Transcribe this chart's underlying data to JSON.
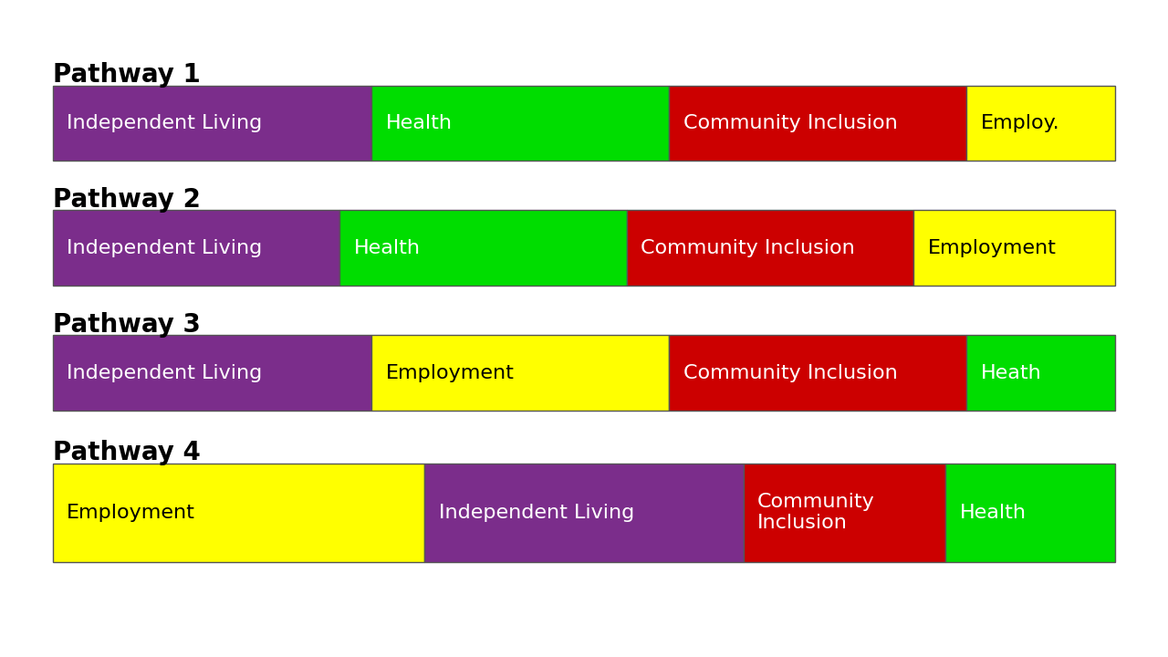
{
  "pathways": [
    {
      "title": "Pathway 1",
      "segments": [
        {
          "label": "Independent Living",
          "value": 30,
          "color": "#7B2D8B"
        },
        {
          "label": "Health",
          "value": 28,
          "color": "#00DD00"
        },
        {
          "label": "Community Inclusion",
          "value": 28,
          "color": "#CC0000"
        },
        {
          "label": "Employ.",
          "value": 14,
          "color": "#FFFF00"
        }
      ]
    },
    {
      "title": "Pathway 2",
      "segments": [
        {
          "label": "Independent Living",
          "value": 27,
          "color": "#7B2D8B"
        },
        {
          "label": "Health",
          "value": 27,
          "color": "#00DD00"
        },
        {
          "label": "Community Inclusion",
          "value": 27,
          "color": "#CC0000"
        },
        {
          "label": "Employment",
          "value": 19,
          "color": "#FFFF00"
        }
      ]
    },
    {
      "title": "Pathway 3",
      "segments": [
        {
          "label": "Independent Living",
          "value": 30,
          "color": "#7B2D8B"
        },
        {
          "label": "Employment",
          "value": 28,
          "color": "#FFFF00"
        },
        {
          "label": "Community Inclusion",
          "value": 28,
          "color": "#CC0000"
        },
        {
          "label": "Heath",
          "value": 14,
          "color": "#00DD00"
        }
      ]
    },
    {
      "title": "Pathway 4",
      "segments": [
        {
          "label": "Employment",
          "value": 35,
          "color": "#FFFF00"
        },
        {
          "label": "Independent Living",
          "value": 30,
          "color": "#7B2D8B"
        },
        {
          "label": "Community\nInclusion",
          "value": 19,
          "color": "#CC0000"
        },
        {
          "label": "Health",
          "value": 16,
          "color": "#00DD00"
        }
      ]
    }
  ],
  "background_color": "#FFFFFF",
  "title_fontsize": 20,
  "label_fontsize": 16,
  "bar_edge_color": "#555555"
}
